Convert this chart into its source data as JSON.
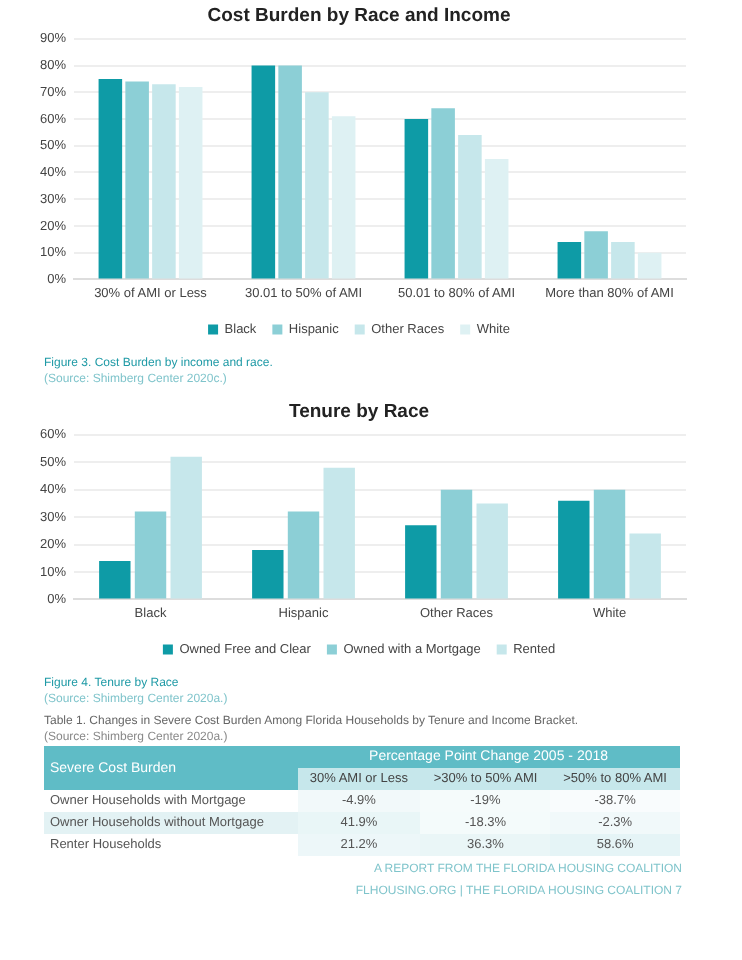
{
  "chart_data": [
    {
      "type": "bar",
      "title": "Cost Burden by Race and Income",
      "categories": [
        "30% of AMI or Less",
        "30.01 to 50% of AMI",
        "50.01 to 80% of AMI",
        "More than 80% of AMI"
      ],
      "series": [
        {
          "name": "Black",
          "color": "#0e9ba6",
          "values": [
            75,
            80,
            60,
            14
          ]
        },
        {
          "name": "Hispanic",
          "color": "#8ccfd6",
          "values": [
            74,
            80,
            64,
            18
          ]
        },
        {
          "name": "Other Races",
          "color": "#c6e7eb",
          "values": [
            73,
            70,
            54,
            14
          ]
        },
        {
          "name": "White",
          "color": "#def1f3",
          "values": [
            72,
            61,
            45,
            10
          ]
        }
      ],
      "ylim": [
        0,
        90
      ],
      "yticks": [
        {
          "value": 0,
          "label": "0%"
        },
        {
          "value": 10,
          "label": "10%"
        },
        {
          "value": 20,
          "label": "20%"
        },
        {
          "value": 30,
          "label": "30%"
        },
        {
          "value": 40,
          "label": "40%"
        },
        {
          "value": 50,
          "label": "50%"
        },
        {
          "value": 60,
          "label": "60%"
        },
        {
          "value": 70,
          "label": "70%"
        },
        {
          "value": 80,
          "label": "80%"
        },
        {
          "value": 90,
          "label": "90%"
        }
      ],
      "grid": "y",
      "legend": "bottom",
      "annotations": [
        "Figure 3.  Cost Burden by income and race.",
        "(Source: Shimberg Center 2020c.)"
      ]
    },
    {
      "type": "bar",
      "title": "Tenure by Race",
      "categories": [
        "Black",
        "Hispanic",
        "Other Races",
        "White"
      ],
      "series": [
        {
          "name": "Owned Free and Clear",
          "color": "#0e9ba6",
          "values": [
            14,
            18,
            27,
            36
          ]
        },
        {
          "name": "Owned with a Mortgage",
          "color": "#8ccfd6",
          "values": [
            32,
            32,
            40,
            40
          ]
        },
        {
          "name": "Rented",
          "color": "#c6e7eb",
          "values": [
            52,
            48,
            35,
            24
          ]
        }
      ],
      "ylim": [
        0,
        60
      ],
      "yticks": [
        {
          "value": 0,
          "label": "0%"
        },
        {
          "value": 10,
          "label": "10%"
        },
        {
          "value": 20,
          "label": "20%"
        },
        {
          "value": 30,
          "label": "30%"
        },
        {
          "value": 40,
          "label": "40%"
        },
        {
          "value": 50,
          "label": "50%"
        },
        {
          "value": 60,
          "label": "60%"
        }
      ],
      "grid": "y",
      "legend": "bottom",
      "annotations": [
        "Figure 4. Tenure by Race",
        "(Source: Shimberg Center 2020a.)"
      ]
    },
    {
      "type": "heatmap",
      "title": "Table 1.  Changes in Severe Cost Burden Among Florida Households by Tenure and Income Bracket.",
      "ylabel": "Severe Cost Burden",
      "xlabel": "Percentage Point Change 2005 - 2018",
      "categories": [
        "30% AMI or Less",
        ">30% to 50% AMI",
        ">50% to 80% AMI"
      ],
      "y_categories": [
        "Owner Households with Mortgage",
        "Owner Households without Mortgage",
        "Renter Households"
      ],
      "cells": [
        [
          -4.9,
          -19,
          -38.7
        ],
        [
          41.9,
          -18.3,
          -2.3
        ],
        [
          21.2,
          36.3,
          58.6
        ]
      ],
      "cell_labels": [
        [
          "-4.9%",
          "-19%",
          "-38.7%"
        ],
        [
          "41.9%",
          "-18.3%",
          "-2.3%"
        ],
        [
          "21.2%",
          "36.3%",
          "58.6%"
        ]
      ],
      "annotations": [
        "(Source: Shimberg Center 2020a.)",
        "A REPORT FROM THE FLORIDA HOUSING COALITION",
        "FLHOUSING.ORG | THE FLORIDA HOUSING COALITION  7"
      ]
    }
  ]
}
